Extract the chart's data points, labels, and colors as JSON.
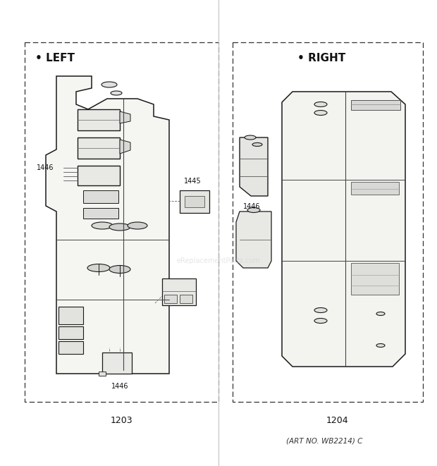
{
  "background_color": "#f5f5f0",
  "left_label": "• LEFT",
  "right_label": "• RIGHT",
  "left_part_number": "1203",
  "right_part_number": "1204",
  "art_no": "(ART NO. WB2214) C",
  "watermark": "eReplacementParts.com",
  "fig_width": 6.2,
  "fig_height": 6.61,
  "dpi": 100
}
